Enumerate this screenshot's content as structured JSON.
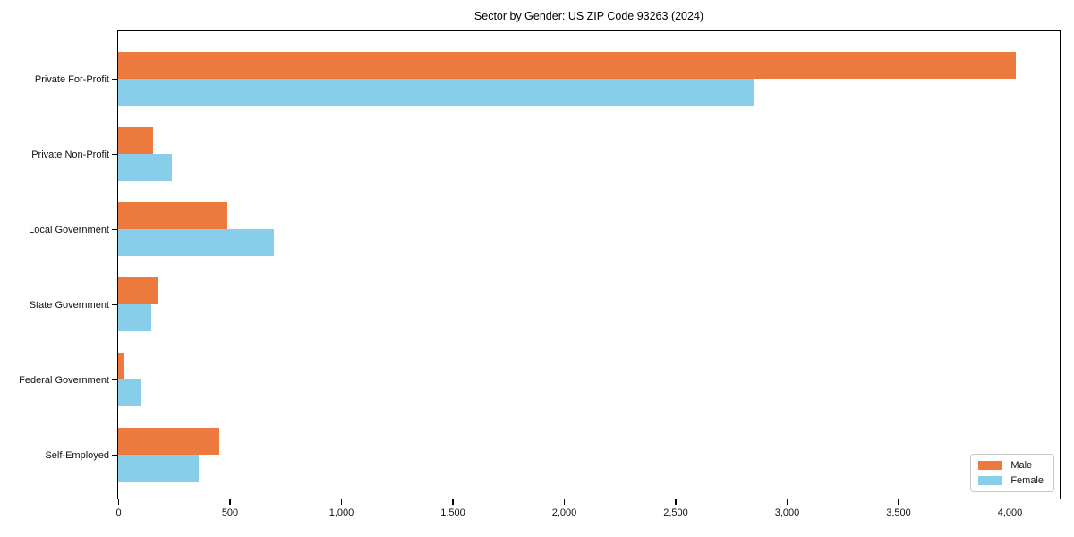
{
  "chart_data": {
    "type": "bar",
    "orientation": "horizontal",
    "title": "Sector by Gender: US ZIP Code 93263 (2024)",
    "categories": [
      "Private For-Profit",
      "Private Non-Profit",
      "Local Government",
      "State Government",
      "Federal Government",
      "Self-Employed"
    ],
    "series": [
      {
        "name": "Male",
        "color": "#EC793D",
        "values": [
          4030,
          155,
          490,
          180,
          30,
          455
        ]
      },
      {
        "name": "Female",
        "color": "#87CEEB",
        "values": [
          2850,
          240,
          700,
          150,
          105,
          360
        ]
      }
    ],
    "xlabel": "",
    "ylabel": "",
    "xlim": [
      0,
      4230
    ],
    "x_ticks": [
      0,
      500,
      1000,
      1500,
      2000,
      2500,
      3000,
      3500,
      4000
    ],
    "x_tick_labels": [
      "0",
      "500",
      "1,000",
      "1,500",
      "2,000",
      "2,500",
      "3,000",
      "3,500",
      "4,000"
    ],
    "grid": false,
    "legend": {
      "position": "lower right"
    }
  }
}
